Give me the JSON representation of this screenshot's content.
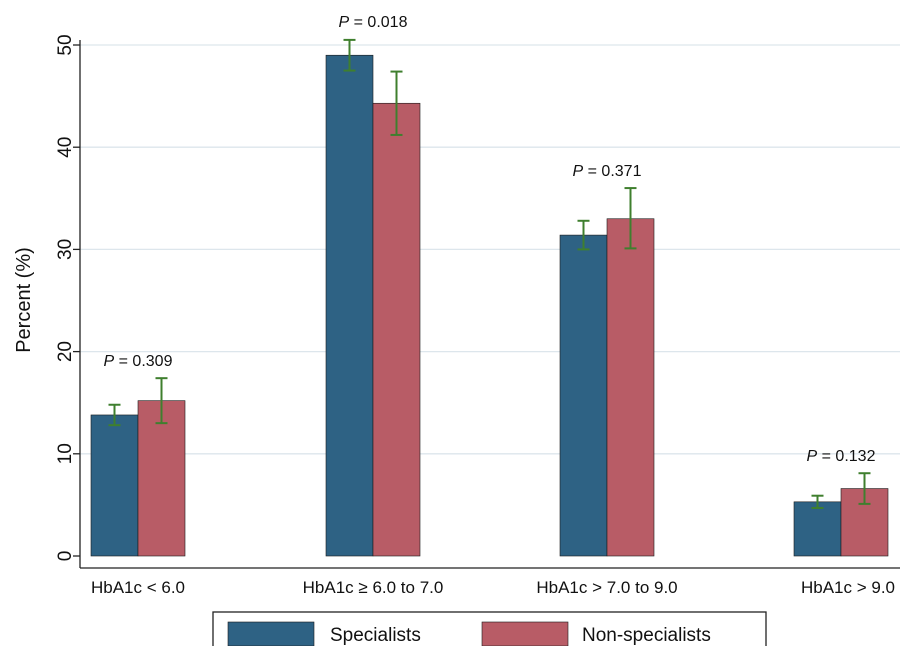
{
  "chart_data": {
    "type": "bar",
    "categories": [
      "HbA1c < 6.0",
      "HbA1c ≥ 6.0 to 7.0",
      "HbA1c > 7.0 to 9.0",
      "HbA1c > 9.0"
    ],
    "series": [
      {
        "name": "Specialists",
        "values": [
          13.8,
          49.0,
          31.4,
          5.3
        ],
        "ci_low": [
          12.8,
          47.5,
          30.0,
          4.7
        ],
        "ci_high": [
          14.8,
          50.5,
          32.8,
          5.9
        ],
        "color": "#2e6284"
      },
      {
        "name": "Non-specialists",
        "values": [
          15.2,
          44.3,
          33.0,
          6.6
        ],
        "ci_low": [
          13.0,
          41.2,
          30.1,
          5.1
        ],
        "ci_high": [
          17.4,
          47.4,
          36.0,
          8.1
        ],
        "color": "#b85c66"
      }
    ],
    "p_values": [
      {
        "prefix": "P",
        "text": " = 0.309"
      },
      {
        "prefix": "P",
        "text": " = 0.018"
      },
      {
        "prefix": "P",
        "text": " = 0.371"
      },
      {
        "prefix": "P",
        "text": " = 0.132"
      }
    ],
    "ylabel": "Percent (%)",
    "ylim": [
      0,
      50
    ],
    "yticks": [
      0,
      10,
      20,
      30,
      40,
      50
    ],
    "grid": true,
    "legend_position": "bottom",
    "errorbar_color": "#3f7f2e"
  }
}
